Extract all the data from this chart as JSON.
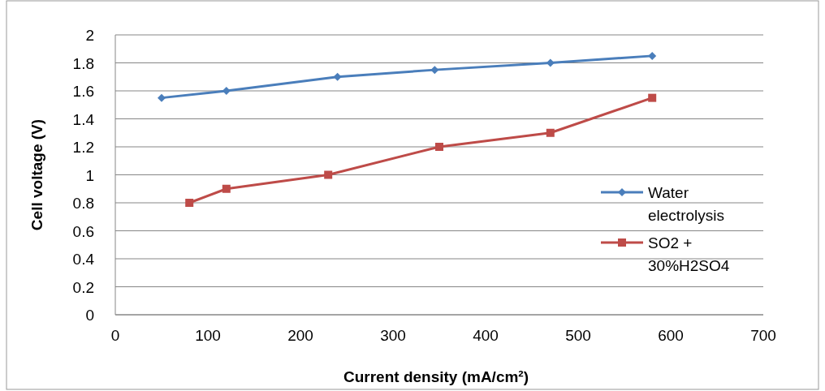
{
  "chart_data": {
    "type": "line",
    "xlabel": "Current density (mA/cm²)",
    "ylabel": "Cell voltage (V)",
    "xlim": [
      0,
      700
    ],
    "xticks": [
      0,
      100,
      200,
      300,
      400,
      500,
      600,
      700
    ],
    "ylim": [
      0,
      2
    ],
    "yticks": [
      0,
      0.2,
      0.4,
      0.6,
      0.8,
      1,
      1.2,
      1.4,
      1.6,
      1.8,
      2
    ],
    "grid": "y",
    "legend": "right",
    "series": [
      {
        "name": "Water electrolysis",
        "color": "#4a7ebb",
        "marker": "diamond",
        "x": [
          50,
          120,
          240,
          345,
          470,
          580
        ],
        "values": [
          1.55,
          1.6,
          1.7,
          1.75,
          1.8,
          1.85
        ]
      },
      {
        "name": "SO2 + 30%H2SO4",
        "color": "#be4b48",
        "marker": "square",
        "x": [
          80,
          120,
          230,
          350,
          470,
          580
        ],
        "values": [
          0.8,
          0.9,
          1.0,
          1.2,
          1.3,
          1.55
        ]
      }
    ]
  }
}
